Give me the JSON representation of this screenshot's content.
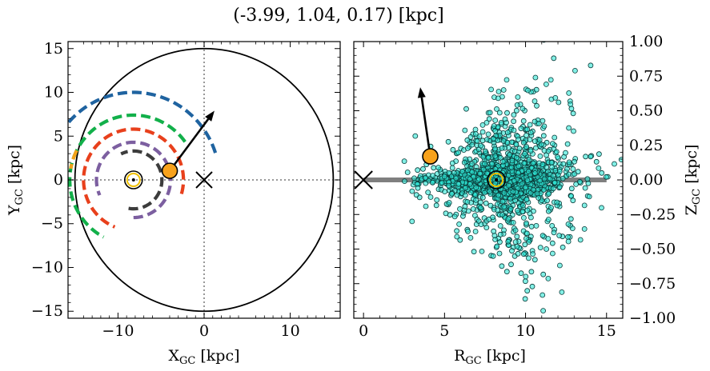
{
  "title": "(-3.99, 1.04, 0.17) [kpc]",
  "chart_data": [
    {
      "type": "scatter",
      "name": "galactic-plane-view",
      "xlabel_main": "X",
      "xlabel_sub": "GC",
      "xlabel_unit": " [kpc]",
      "ylabel_main": "Y",
      "ylabel_sub": "GC",
      "ylabel_unit": " [kpc]",
      "xlim": [
        -15.8,
        15.8
      ],
      "ylim": [
        -15.8,
        15.8
      ],
      "xticks": [
        {
          "v": -10,
          "label": "−10"
        },
        {
          "v": 0,
          "label": "0"
        },
        {
          "v": 10,
          "label": "10"
        }
      ],
      "yticks": [
        {
          "v": -15,
          "label": "−15"
        },
        {
          "v": -10,
          "label": "−10"
        },
        {
          "v": -5,
          "label": "−5"
        },
        {
          "v": 0,
          "label": "0"
        },
        {
          "v": 5,
          "label": "5"
        },
        {
          "v": 10,
          "label": "10"
        },
        {
          "v": 15,
          "label": "15"
        }
      ],
      "boundary_radius": 15,
      "galactic_center": [
        0,
        0
      ],
      "sun": [
        -8.2,
        0
      ],
      "object": [
        -3.99,
        1.04
      ],
      "velocity_arrow_tip": [
        1.2,
        7.9
      ],
      "arms": [
        {
          "color": "#1f63a0",
          "r": 10.0,
          "theta_range": [
            18,
            150
          ]
        },
        {
          "color": "#12b04a",
          "r": 7.4,
          "theta_range": [
            36,
            242
          ]
        },
        {
          "color": "#f4a21a",
          "r": 7.4,
          "theta_range": [
            153,
            170
          ]
        },
        {
          "color": "#e8401c",
          "r": 5.8,
          "theta_range": [
            -16,
            248
          ]
        },
        {
          "color": "#7c5fa0",
          "r": 4.3,
          "theta_range": [
            -90,
            204
          ]
        },
        {
          "color": "#3c3c3c",
          "r": 3.3,
          "theta_range": [
            -100,
            116
          ]
        }
      ]
    },
    {
      "type": "scatter",
      "name": "rz-view",
      "xlabel_main": "R",
      "xlabel_sub": "GC",
      "xlabel_unit": " [kpc]",
      "ylabel_main": "Z",
      "ylabel_sub": "GC",
      "ylabel_unit": " [kpc]",
      "xlim": [
        -0.6,
        16.0
      ],
      "ylim": [
        -1.0,
        1.0
      ],
      "xticks": [
        {
          "v": 0,
          "label": "0"
        },
        {
          "v": 5,
          "label": "5"
        },
        {
          "v": 10,
          "label": "10"
        },
        {
          "v": 15,
          "label": "15"
        }
      ],
      "yticks": [
        {
          "v": -1.0,
          "label": "−1.00"
        },
        {
          "v": -0.75,
          "label": "−0.75"
        },
        {
          "v": -0.5,
          "label": "−0.50"
        },
        {
          "v": -0.25,
          "label": "−0.25"
        },
        {
          "v": 0.0,
          "label": "0.00"
        },
        {
          "v": 0.25,
          "label": "0.25"
        },
        {
          "v": 0.5,
          "label": "0.50"
        },
        {
          "v": 0.75,
          "label": "0.75"
        },
        {
          "v": 1.0,
          "label": "1.00"
        }
      ],
      "disk_line": {
        "x": [
          0,
          15
        ],
        "y": 0,
        "color": "#7f7f7f"
      },
      "galactic_center": [
        0,
        0
      ],
      "sun": [
        8.2,
        0
      ],
      "object": [
        4.12,
        0.17
      ],
      "velocity_arrow_tip": [
        3.5,
        0.67
      ],
      "star_color": "#2ee6d6",
      "star_count": 1800,
      "star_cloud": {
        "center_r": 8.6,
        "sigma_r": 2.4,
        "sigma_z_core": 0.06,
        "sigma_z_halo": 0.28
      }
    }
  ]
}
